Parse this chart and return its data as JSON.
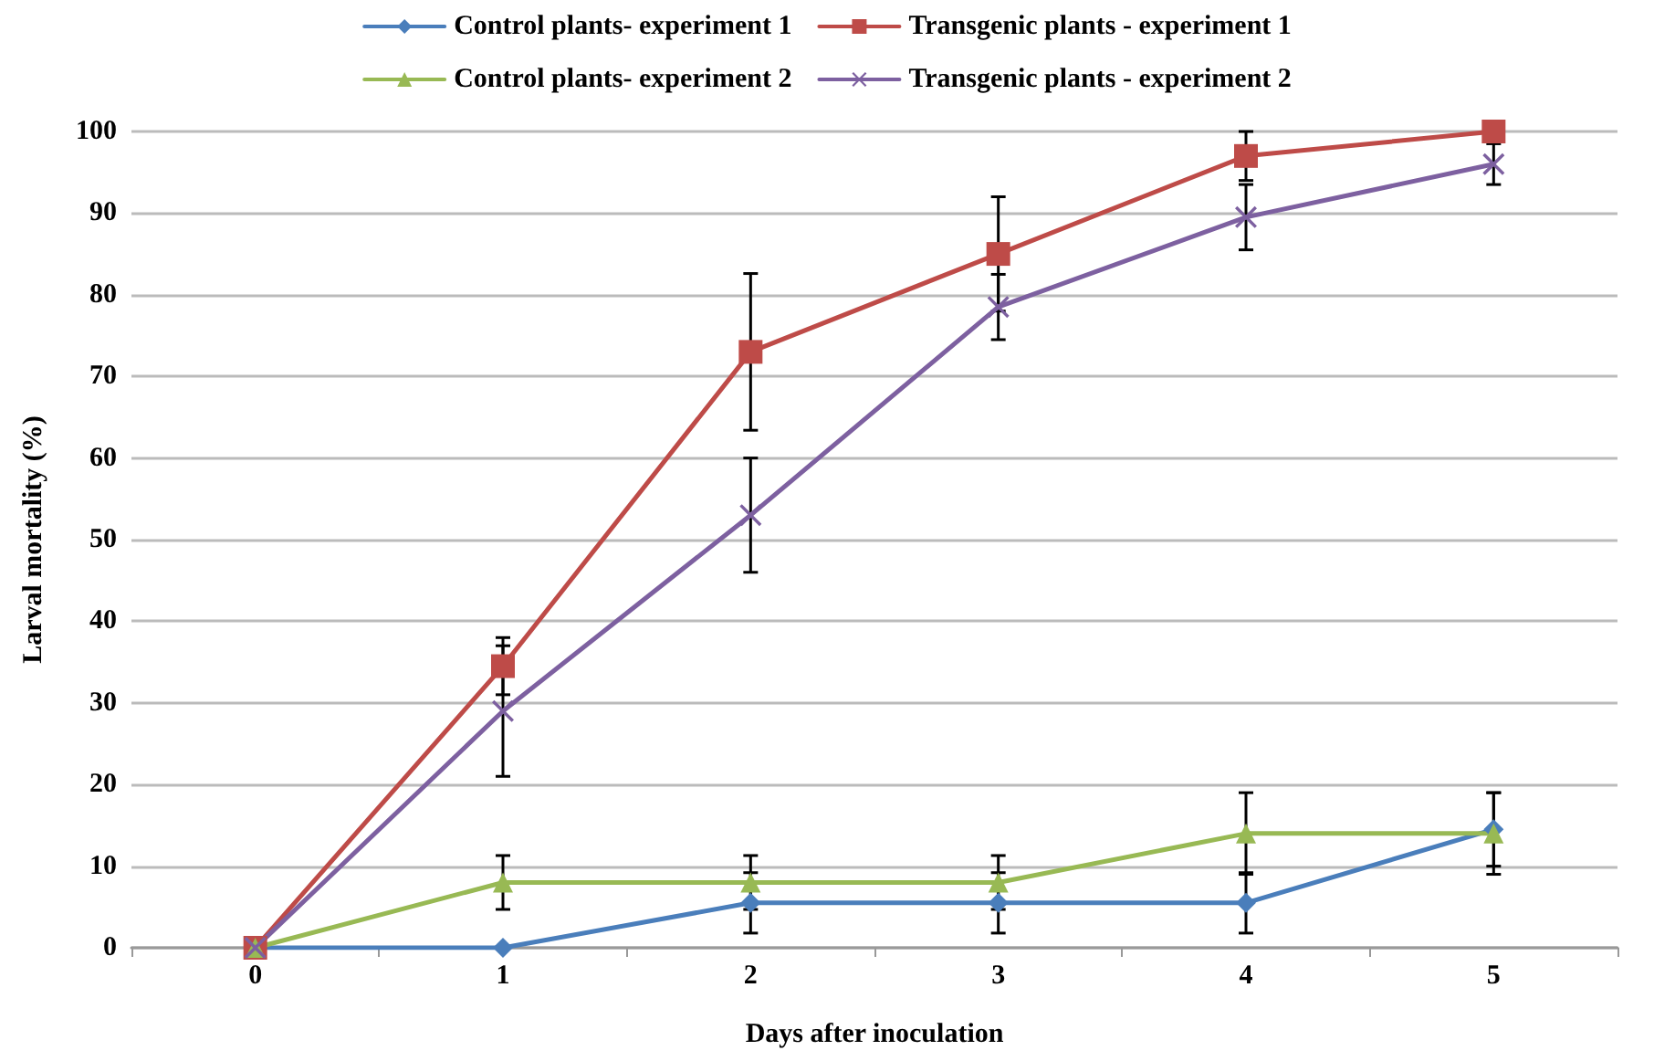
{
  "chart_data": {
    "type": "line",
    "xlabel": "Days after inoculation",
    "ylabel": "Larval mortality (%)",
    "categories": [
      "0",
      "1",
      "2",
      "3",
      "4",
      "5"
    ],
    "ylim": [
      0,
      100
    ],
    "yticks": [
      0,
      10,
      20,
      30,
      40,
      50,
      60,
      70,
      80,
      90,
      100
    ],
    "grid": "y",
    "legend": "top",
    "series": [
      {
        "name": "Control plants- experiment 1",
        "color": "#4a7ebb",
        "marker": "diamond",
        "values": [
          0,
          0,
          5.5,
          5.5,
          5.5,
          14.5
        ],
        "errors": [
          null,
          null,
          3.7,
          3.7,
          3.7,
          4.5
        ]
      },
      {
        "name": "Transgenic plants - experiment 1",
        "color": "#be4b48",
        "marker": "square",
        "values": [
          0,
          34.5,
          73,
          85,
          97,
          100
        ],
        "errors": [
          null,
          3.5,
          9.6,
          7,
          3,
          null
        ]
      },
      {
        "name": "Control plants- experiment 2",
        "color": "#98b954",
        "marker": "triangle",
        "values": [
          0,
          8,
          8,
          8,
          14,
          14
        ],
        "errors": [
          null,
          3.3,
          3.3,
          3.3,
          5,
          5
        ]
      },
      {
        "name": "Transgenic plants - experiment 2",
        "color": "#7d60a0",
        "marker": "cross",
        "values": [
          0,
          29,
          53,
          78.5,
          89.5,
          96
        ],
        "errors": [
          null,
          8,
          7,
          4,
          4,
          2.5
        ]
      }
    ]
  }
}
